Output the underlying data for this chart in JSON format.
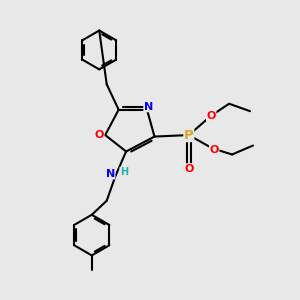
{
  "bg_color": "#e8e8e8",
  "bond_color": "#000000",
  "bond_width": 1.5,
  "atom_colors": {
    "N": "#0000ff",
    "O": "#ff0000",
    "P": "#daa520",
    "H": "#20b2aa",
    "C": "#000000"
  },
  "font_size": 8.0,
  "figsize": [
    3.0,
    3.0
  ],
  "dpi": 100
}
